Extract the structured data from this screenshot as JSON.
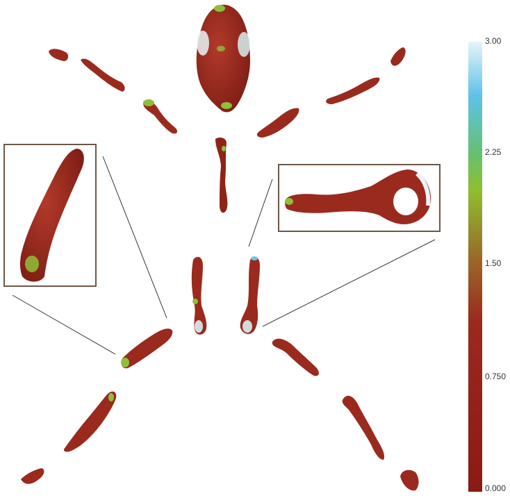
{
  "colors": {
    "bone_base": "#9a2a1e",
    "bone_dark": "#7a1c14",
    "highlight_green": "#8fbf3a",
    "highlight_cyan": "#66c8e8",
    "highlight_white": "#e8f4f8",
    "inset_border": "#6b5848",
    "leader_line": "#333333"
  },
  "colorbar": {
    "min": 0.0,
    "max": 3.0,
    "ticks": [
      "3.00",
      "2.25",
      "1.50",
      "0.750",
      "0.000"
    ],
    "gradient": [
      "#e6f4fa",
      "#5ec2e8",
      "#66c070",
      "#8fbf30",
      "#9a6a2a",
      "#9a2a1e",
      "#8a1a14"
    ]
  },
  "parts": [
    "skull",
    "spine",
    "left-humerus",
    "left-forearm",
    "left-hand",
    "right-humerus",
    "right-forearm",
    "right-hand",
    "left-pelvis",
    "right-pelvis",
    "left-femur",
    "left-tibia",
    "left-foot",
    "right-femur",
    "right-tibia",
    "right-foot"
  ],
  "insets": [
    "femur-closeup",
    "pelvis-closeup"
  ]
}
